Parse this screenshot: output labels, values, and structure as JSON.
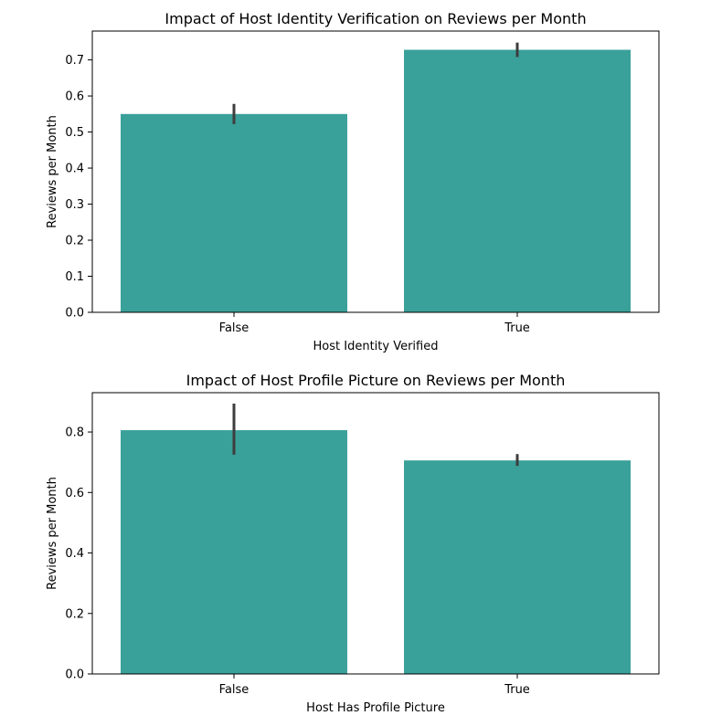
{
  "chart_data": [
    {
      "type": "bar",
      "title": "Impact of Host Identity Verification on Reviews per Month",
      "xlabel": "Host Identity Verified",
      "ylabel": "Reviews per Month",
      "categories": [
        "False",
        "True"
      ],
      "values": [
        0.55,
        0.728
      ],
      "error_low": [
        0.522,
        0.708
      ],
      "error_high": [
        0.578,
        0.748
      ],
      "ylim": [
        0,
        0.78
      ],
      "yticks": [
        0.0,
        0.1,
        0.2,
        0.3,
        0.4,
        0.5,
        0.6,
        0.7
      ],
      "ytick_labels": [
        "0.0",
        "0.1",
        "0.2",
        "0.3",
        "0.4",
        "0.5",
        "0.6",
        "0.7"
      ],
      "grid": false,
      "bar_color": "#3aa09a",
      "error_color": "#3d3d3d"
    },
    {
      "type": "bar",
      "title": "Impact of Host Profile Picture on Reviews per Month",
      "xlabel": "Host Has Profile Picture",
      "ylabel": "Reviews per Month",
      "categories": [
        "False",
        "True"
      ],
      "values": [
        0.806,
        0.706
      ],
      "error_low": [
        0.725,
        0.688
      ],
      "error_high": [
        0.894,
        0.727
      ],
      "ylim": [
        0,
        0.93
      ],
      "yticks": [
        0.0,
        0.2,
        0.4,
        0.6,
        0.8
      ],
      "ytick_labels": [
        "0.0",
        "0.2",
        "0.4",
        "0.6",
        "0.8"
      ],
      "grid": false,
      "bar_color": "#3aa09a",
      "error_color": "#3d3d3d"
    }
  ]
}
